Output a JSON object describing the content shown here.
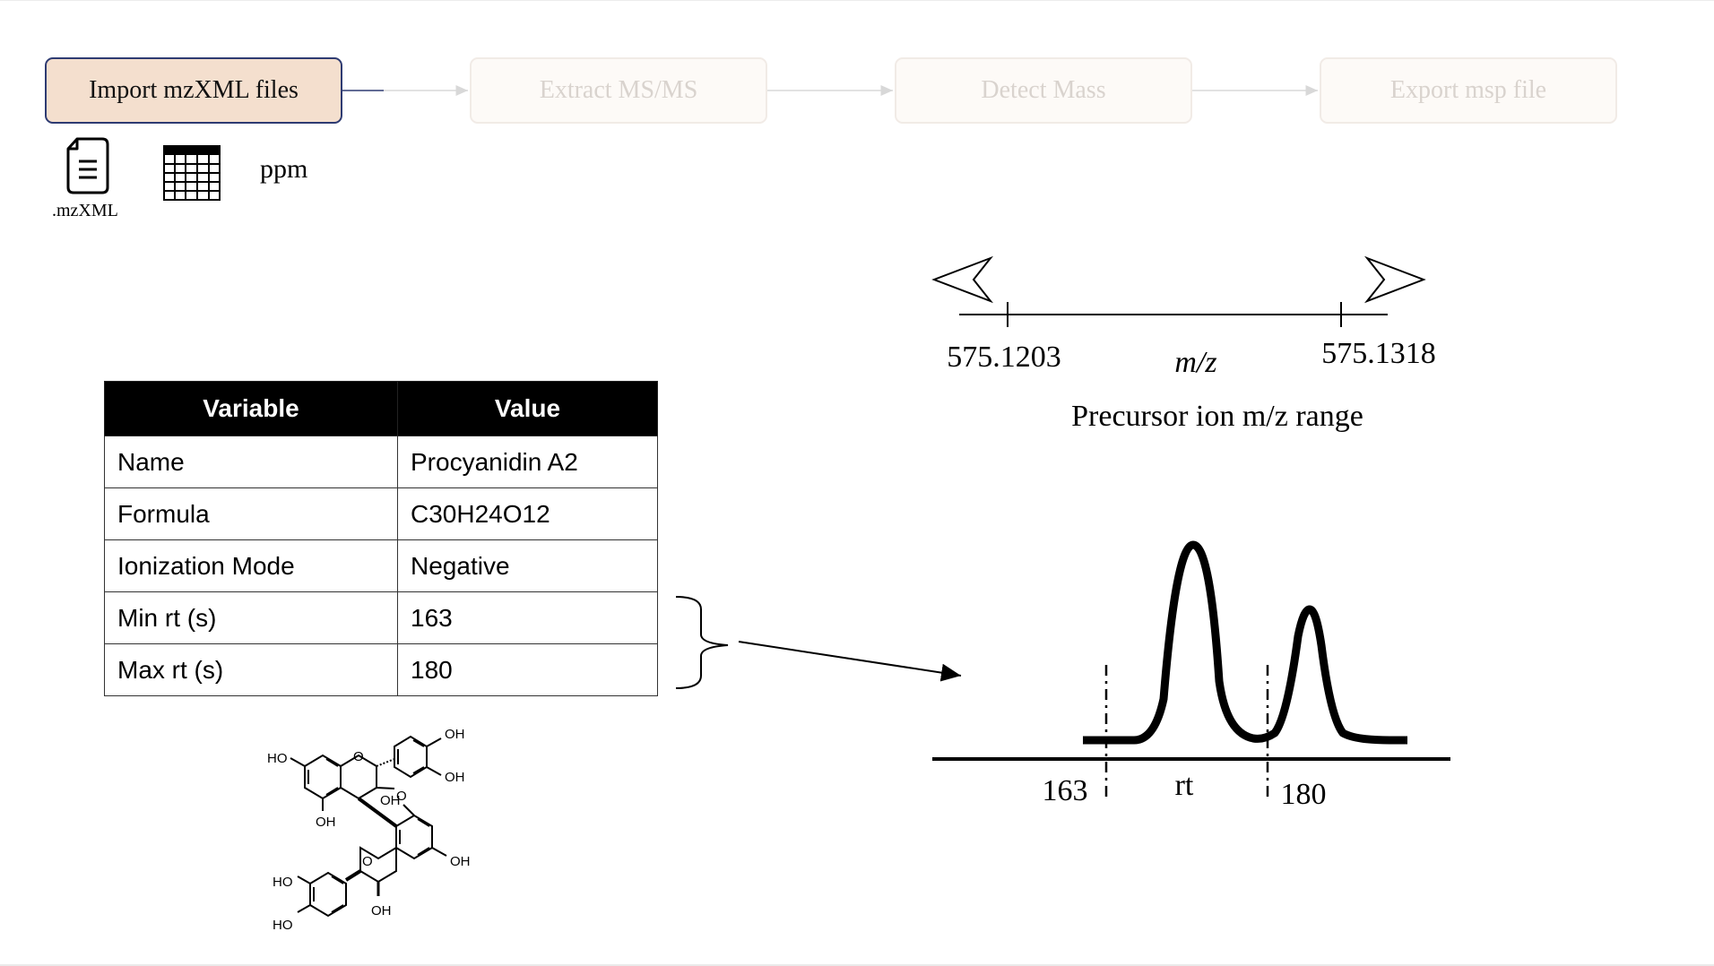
{
  "workflow": {
    "steps": [
      {
        "label": "Import mzXML files",
        "state": "active"
      },
      {
        "label": "Extract MS/MS",
        "state": "inactive"
      },
      {
        "label": "Detect Mass",
        "state": "inactive"
      },
      {
        "label": "Export msp file",
        "state": "inactive"
      }
    ]
  },
  "inputs": {
    "file_label": ".mzXML",
    "ppm_label": "ppm",
    "icons": [
      "document-icon",
      "table-grid-icon"
    ]
  },
  "variables_table": {
    "headers": [
      "Variable",
      "Value"
    ],
    "rows": [
      [
        "Name",
        "Procyanidin A2"
      ],
      [
        "Formula",
        "C30H24O12"
      ],
      [
        "Ionization Mode",
        "Negative"
      ],
      [
        "Min rt (s)",
        "163"
      ],
      [
        "Max rt (s)",
        "180"
      ]
    ]
  },
  "mz_range": {
    "low": "575.1203",
    "high": "575.1318",
    "axis_label": "m/z",
    "caption": "Precursor ion m/z range"
  },
  "rt_plot": {
    "min": "163",
    "max": "180",
    "axis_label": "rt"
  },
  "structure": {
    "labels": [
      "HO",
      "O",
      "OH",
      "OH",
      "OH",
      "O",
      "OH",
      "OH",
      "O",
      "HO",
      "HO",
      "OH"
    ]
  },
  "colors": {
    "active_step_fill": "#f4dfce",
    "active_step_border": "#2e3b72",
    "inactive_step_fill": "#fdfaf7",
    "inactive_text": "#d9d3ce",
    "table_header": "#000000"
  }
}
